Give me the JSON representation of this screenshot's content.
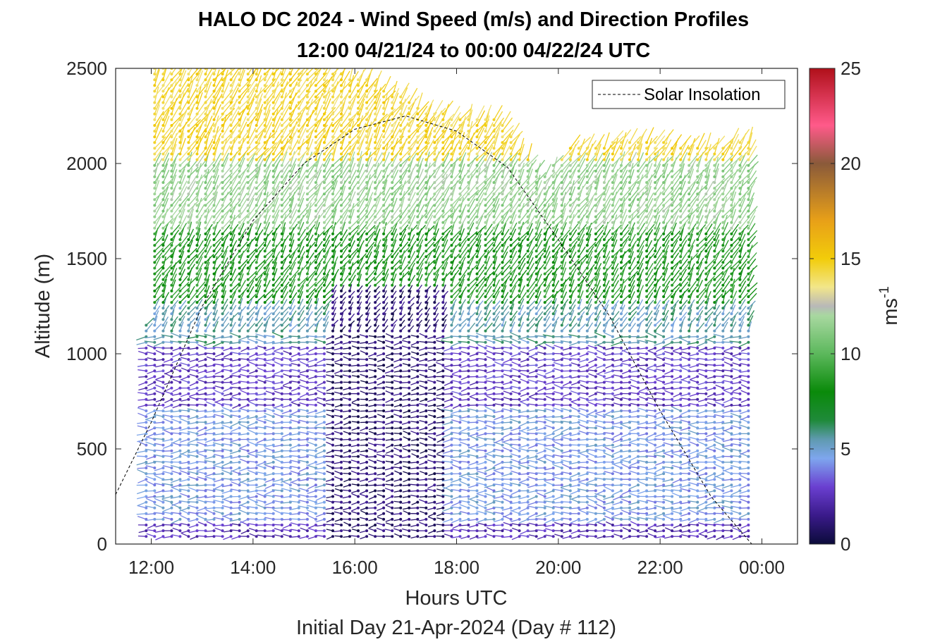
{
  "chart_data": {
    "type": "quiver",
    "title": "HALO DC 2024 - Wind Speed (m/s) and Direction Profiles",
    "subtitle": "12:00 04/21/24 to 00:00 04/22/24  UTC",
    "xlabel": "Hours UTC",
    "xlabel2": "Initial Day 21-Apr-2024 (Day # 112)",
    "ylabel": "Altitude (m)",
    "xlim": [
      11.3,
      24.7
    ],
    "ylim": [
      0,
      2500
    ],
    "x_ticks": [
      12,
      14,
      16,
      18,
      20,
      22,
      24
    ],
    "x_tick_labels": [
      "12:00",
      "14:00",
      "16:00",
      "18:00",
      "20:00",
      "22:00",
      "00:00"
    ],
    "y_ticks": [
      0,
      500,
      1000,
      1500,
      2000,
      2500
    ],
    "y_tick_labels": [
      "0",
      "500",
      "1000",
      "1500",
      "2000",
      "2500"
    ],
    "colorbar": {
      "label": "ms",
      "label_superscript": "-1",
      "range": [
        0,
        25
      ],
      "ticks": [
        0,
        5,
        10,
        15,
        20,
        25
      ],
      "tick_labels": [
        "0",
        "5",
        "10",
        "15",
        "20",
        "25"
      ],
      "colors": [
        {
          "v": 0,
          "c": "#0b0b3a"
        },
        {
          "v": 1.5,
          "c": "#3a1a8a"
        },
        {
          "v": 3,
          "c": "#6a3fd0"
        },
        {
          "v": 4.5,
          "c": "#7ea6ee"
        },
        {
          "v": 5.5,
          "c": "#5f9ab0"
        },
        {
          "v": 6.5,
          "c": "#1f8a3a"
        },
        {
          "v": 8,
          "c": "#0a8a0a"
        },
        {
          "v": 10,
          "c": "#5cb85c"
        },
        {
          "v": 12,
          "c": "#a8d8a0"
        },
        {
          "v": 12.5,
          "c": "#b8b8b8"
        },
        {
          "v": 13.5,
          "c": "#f2e68a"
        },
        {
          "v": 15,
          "c": "#f2cc0a"
        },
        {
          "v": 17,
          "c": "#e8a018"
        },
        {
          "v": 20,
          "c": "#8a5a3a"
        },
        {
          "v": 22,
          "c": "#ff5a8a"
        },
        {
          "v": 25,
          "c": "#b0101a"
        }
      ]
    },
    "legend": {
      "label": "Solar Insolation",
      "position": "top-right",
      "style": "dashed black line"
    },
    "solar_insolation_curve": [
      {
        "x": 11.3,
        "y": 260
      },
      {
        "x": 12.0,
        "y": 640
      },
      {
        "x": 13.0,
        "y": 1250
      },
      {
        "x": 14.0,
        "y": 1700
      },
      {
        "x": 15.0,
        "y": 2000
      },
      {
        "x": 16.0,
        "y": 2180
      },
      {
        "x": 17.0,
        "y": 2250
      },
      {
        "x": 18.0,
        "y": 2170
      },
      {
        "x": 19.0,
        "y": 1980
      },
      {
        "x": 20.0,
        "y": 1600
      },
      {
        "x": 21.0,
        "y": 1200
      },
      {
        "x": 22.0,
        "y": 700
      },
      {
        "x": 23.0,
        "y": 250
      },
      {
        "x": 23.8,
        "y": 0
      },
      {
        "x": 24.5,
        "y": 0
      }
    ],
    "wind_profiles": {
      "time_start": 11.9,
      "time_end": 23.85,
      "time_step": 0.1667,
      "altitude_step": 30,
      "note": "wind vectors (speed and direction) plotted at each time/altitude gate",
      "top_altitude_by_time": [
        {
          "x": 11.9,
          "y": 1150
        },
        {
          "x": 12.05,
          "y": 2500
        },
        {
          "x": 15.5,
          "y": 2500
        },
        {
          "x": 16.5,
          "y": 2420
        },
        {
          "x": 17.2,
          "y": 2300
        },
        {
          "x": 18.0,
          "y": 2250
        },
        {
          "x": 18.8,
          "y": 2250
        },
        {
          "x": 19.3,
          "y": 2050
        },
        {
          "x": 19.7,
          "y": 1950
        },
        {
          "x": 20.2,
          "y": 2080
        },
        {
          "x": 21.3,
          "y": 2120
        },
        {
          "x": 23.0,
          "y": 2100
        },
        {
          "x": 23.85,
          "y": 2130
        }
      ],
      "speed_layers": [
        {
          "alt_max": 120,
          "speed": 2.5
        },
        {
          "alt_max": 700,
          "speed": 4.5
        },
        {
          "alt_max": 1050,
          "speed": 2.8
        },
        {
          "alt_max": 1250,
          "speed": 5.5
        },
        {
          "alt_max": 1650,
          "speed": 8.5
        },
        {
          "alt_max": 2000,
          "speed": 11.5
        },
        {
          "alt_max": 2500,
          "speed": 14.5
        }
      ],
      "calm_region": {
        "x_start": 15.5,
        "x_end": 17.8,
        "alt_max": 1350,
        "speed": 1.0
      }
    }
  }
}
